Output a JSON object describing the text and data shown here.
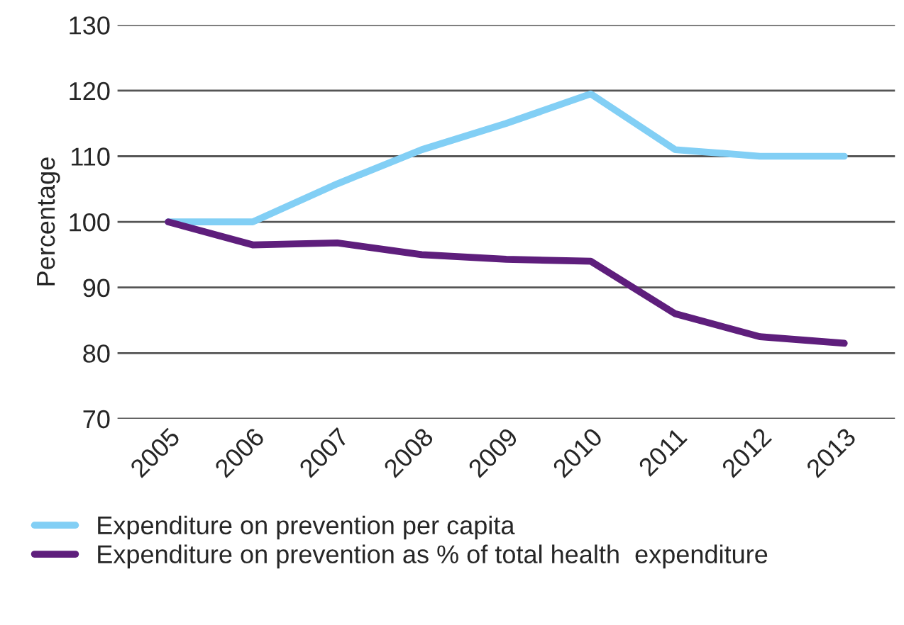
{
  "chart_data": {
    "type": "line",
    "ylabel": "Percentage",
    "categories": [
      "2005",
      "2006",
      "2007",
      "2008",
      "2009",
      "2010",
      "2011",
      "2012",
      "2013"
    ],
    "series": [
      {
        "name": "Expenditure on prevention per capita",
        "color": "#82cff5",
        "values": [
          100,
          100,
          105.8,
          111,
          115,
          119.5,
          111,
          110,
          110
        ]
      },
      {
        "name": "Expenditure on prevention as % of total health  expenditure",
        "color": "#5e1e7c",
        "values": [
          100,
          96.5,
          96.8,
          95,
          94.3,
          94,
          86,
          82.5,
          81.5
        ]
      }
    ],
    "ylim": [
      70,
      130
    ],
    "yticks": [
      70,
      80,
      90,
      100,
      110,
      120,
      130
    ],
    "grid": "y",
    "legend": "bottom"
  }
}
